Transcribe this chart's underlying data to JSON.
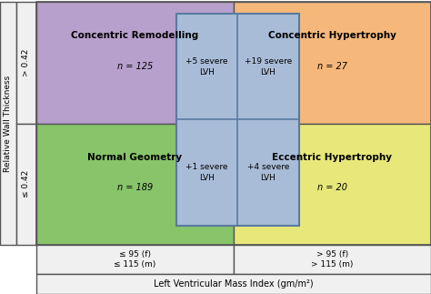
{
  "title_bottom": "Left Ventricular Mass Index (gm/m²)",
  "ylabel": "Relative Wall Thickness",
  "y_upper_label": "> 0.42",
  "y_lower_label": "≤ 0.42",
  "x_left_label": "≤ 95 (f)\n≤ 115 (m)",
  "x_right_label": "> 95 (f)\n> 115 (m)",
  "quadrants": [
    {
      "label": "Concentric Remodelling",
      "n": "n = 125",
      "color": "#b8a0cc"
    },
    {
      "label": "Concentric Hypertrophy",
      "n": "n = 27",
      "color": "#f5b87a"
    },
    {
      "label": "Normal Geometry",
      "n": "n = 189",
      "color": "#88c46a"
    },
    {
      "label": "Eccentric Hypertrophy",
      "n": "n = 20",
      "color": "#e8e87a"
    }
  ],
  "overlay_color": "#a8bcd8",
  "overlay_border": "#5a7aa0",
  "bg_color": "#ffffff",
  "border_color": "#555555",
  "label_bg": "#f0f0f0",
  "fig_width": 4.74,
  "fig_height": 3.23,
  "dpi": 100
}
